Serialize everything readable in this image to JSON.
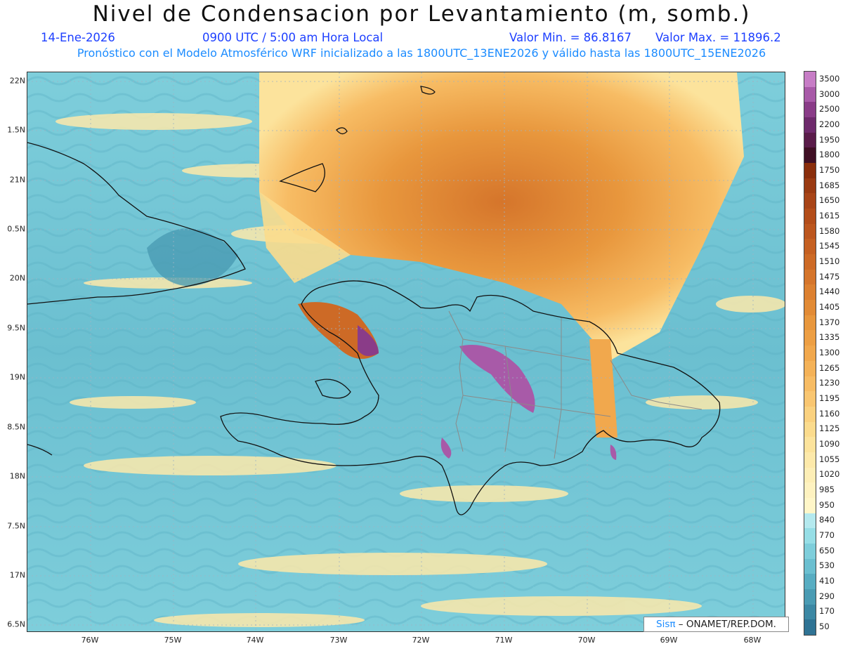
{
  "title": "Nivel de Condensacion por Levantamiento (m, somb.)",
  "date": "14-Ene-2026",
  "time": "0900 UTC / 5:00 am Hora Local",
  "value_min": "Valor Min. = 86.8167",
  "value_max": "Valor Max. = 11896.2",
  "model_info": "Pronóstico con el Modelo Atmosférico WRF inicializado a las 1800UTC_13ENE2026 y válido hasta las  1800UTC_15ENE2026",
  "lat_labels": [
    "22N",
    "1.5N",
    "21N",
    "0.5N",
    "20N",
    "9.5N",
    "19N",
    "8.5N",
    "18N",
    "7.5N",
    "17N",
    "6.5N"
  ],
  "lon_labels": [
    "76W",
    "75W",
    "74W",
    "73W",
    "72W",
    "71W",
    "70W",
    "69W",
    "68W"
  ],
  "credit": {
    "sis": "Sisπ",
    "org": "– ONAMET/REP.DOM."
  },
  "colorbar": {
    "levels": [
      "3500",
      "3000",
      "2500",
      "2200",
      "1950",
      "1800",
      "1750",
      "1685",
      "1650",
      "1615",
      "1580",
      "1545",
      "1510",
      "1475",
      "1440",
      "1405",
      "1370",
      "1335",
      "1300",
      "1265",
      "1230",
      "1195",
      "1160",
      "1125",
      "1090",
      "1055",
      "1020",
      "985",
      "950",
      "840",
      "770",
      "650",
      "530",
      "410",
      "290",
      "170",
      "50"
    ],
    "colors": [
      "#c77dc6",
      "#a85aa8",
      "#8a3c88",
      "#6e2a6c",
      "#5a1c4a",
      "#3f0f24",
      "#8a2e0c",
      "#9a3a12",
      "#a84417",
      "#b34d1a",
      "#bc561e",
      "#c56022",
      "#cd6a26",
      "#d5752b",
      "#dc8030",
      "#e28b36",
      "#e8973d",
      "#ed9f44",
      "#f1a84d",
      "#f4b258",
      "#f7bc64",
      "#f9c671",
      "#fad17f",
      "#fbdb8d",
      "#fce39c",
      "#fde9aa",
      "#fdeeb6",
      "#fef2c0",
      "#fff6c8",
      "#b4e9ee",
      "#96dee6",
      "#7ecedb",
      "#6bbfd0",
      "#58adc2",
      "#4a9bb3",
      "#3c88a4",
      "#2f7394"
    ]
  }
}
